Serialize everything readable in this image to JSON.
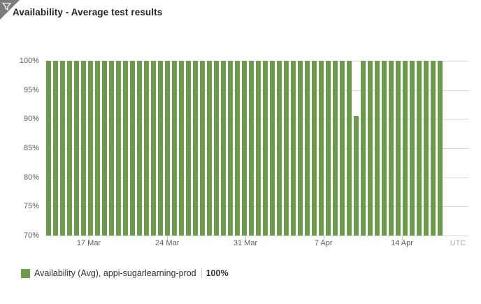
{
  "header": {
    "title": "Availability - Average test results"
  },
  "chart_data": {
    "type": "bar",
    "title": "Availability - Average test results",
    "xlabel": "",
    "ylabel": "",
    "ylim": [
      70,
      100
    ],
    "y_tick_values": [
      100,
      95,
      90,
      85,
      80,
      75,
      70
    ],
    "y_tick_labels": [
      "100%",
      "95%",
      "90%",
      "85%",
      "80%",
      "75%",
      "70%"
    ],
    "x_ticks": [
      {
        "label": "17 Mar",
        "pct": 10.7
      },
      {
        "label": "24 Mar",
        "pct": 30.4
      },
      {
        "label": "31 Mar",
        "pct": 50.0
      },
      {
        "label": "7 Apr",
        "pct": 69.6
      },
      {
        "label": "14 Apr",
        "pct": 89.3
      }
    ],
    "timezone_label": "UTC",
    "grid": true,
    "legend_position": "bottom-left",
    "bar_color": "#6d9b4d",
    "series_name": "Availability (Avg), appi-sugarlearning-prod",
    "values": [
      100,
      100,
      100,
      100,
      100,
      100,
      100,
      100,
      100,
      100,
      100,
      100,
      100,
      100,
      100,
      100,
      100,
      100,
      100,
      100,
      100,
      100,
      100,
      100,
      100,
      100,
      100,
      100,
      100,
      100,
      100,
      100,
      100,
      100,
      100,
      100,
      100,
      100,
      100,
      100,
      100,
      100,
      100,
      100,
      90.5,
      100,
      100,
      100,
      100,
      100,
      100,
      100,
      100,
      100,
      100,
      100,
      100
    ]
  },
  "legend": {
    "swatch_color": "#6d9b4d",
    "label": "Availability (Avg), appi-sugarlearning-prod",
    "value": "100%"
  }
}
